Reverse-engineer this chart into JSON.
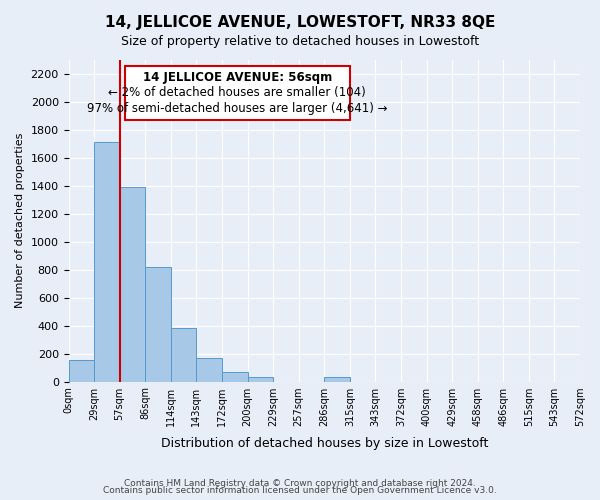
{
  "title": "14, JELLICOE AVENUE, LOWESTOFT, NR33 8QE",
  "subtitle": "Size of property relative to detached houses in Lowestoft",
  "xlabel": "Distribution of detached houses by size in Lowestoft",
  "ylabel": "Number of detached properties",
  "bin_labels": [
    "0sqm",
    "29sqm",
    "57sqm",
    "86sqm",
    "114sqm",
    "143sqm",
    "172sqm",
    "200sqm",
    "229sqm",
    "257sqm",
    "286sqm",
    "315sqm",
    "343sqm",
    "372sqm",
    "400sqm",
    "429sqm",
    "458sqm",
    "486sqm",
    "515sqm",
    "543sqm",
    "572sqm"
  ],
  "bar_values": [
    155,
    1710,
    1390,
    820,
    385,
    165,
    65,
    30,
    0,
    0,
    30,
    0,
    0,
    0,
    0,
    0,
    0,
    0,
    0,
    0
  ],
  "bar_color": "#a8c8e8",
  "bar_edge_color": "#5599cc",
  "ylim": [
    0,
    2300
  ],
  "yticks": [
    0,
    200,
    400,
    600,
    800,
    1000,
    1200,
    1400,
    1600,
    1800,
    2000,
    2200
  ],
  "property_line_x": 2,
  "property_line_color": "#cc0000",
  "annotation_title": "14 JELLICOE AVENUE: 56sqm",
  "annotation_line1": "← 2% of detached houses are smaller (104)",
  "annotation_line2": "97% of semi-detached houses are larger (4,641) →",
  "footnote1": "Contains HM Land Registry data © Crown copyright and database right 2024.",
  "footnote2": "Contains public sector information licensed under the Open Government Licence v3.0.",
  "bg_color": "#e8eef8",
  "plot_bg_color": "#e8eef8"
}
